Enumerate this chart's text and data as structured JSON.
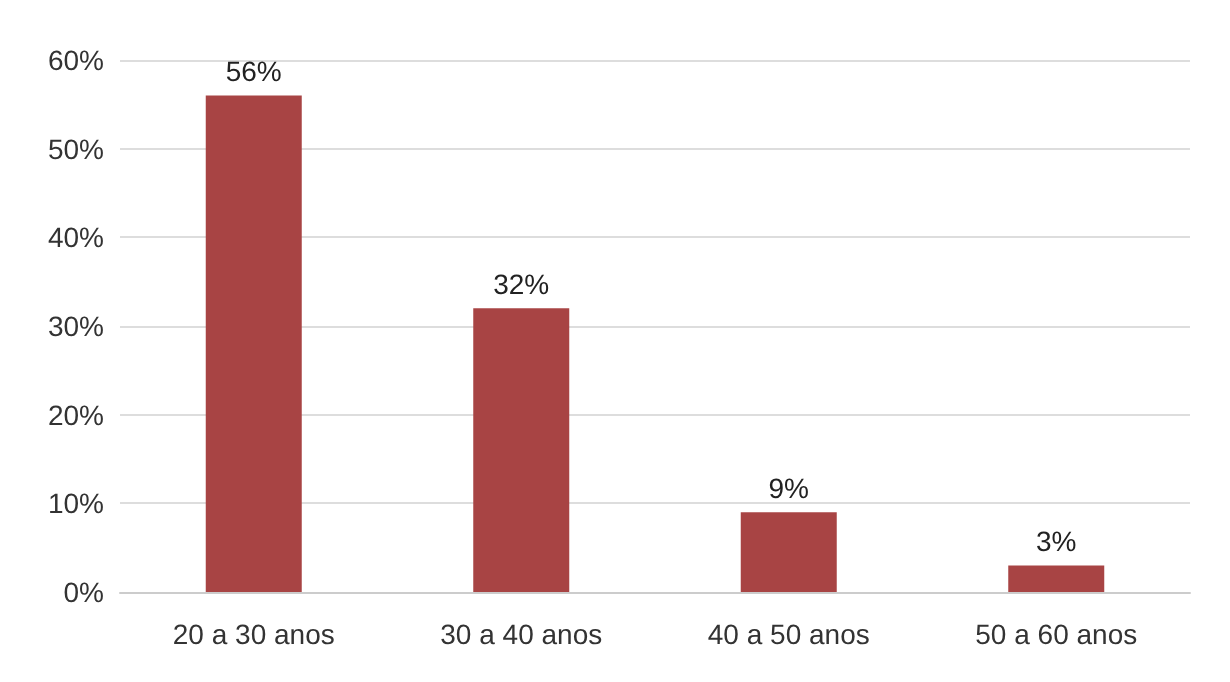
{
  "chart_data": {
    "type": "bar",
    "categories": [
      "20 a 30 anos",
      "30 a 40 anos",
      "40 a 50 anos",
      "50 a 60 anos"
    ],
    "values": [
      56,
      32,
      9,
      3
    ],
    "value_labels": [
      "56%",
      "32%",
      "9%",
      "3%"
    ],
    "color": "#a84444",
    "ylim": [
      0,
      60
    ],
    "yticks": [
      {
        "value": 0,
        "label": "0%"
      },
      {
        "value": 10,
        "label": "10%"
      },
      {
        "value": 20,
        "label": "20%"
      },
      {
        "value": 30,
        "label": "30%"
      },
      {
        "value": 40,
        "label": "40%"
      },
      {
        "value": 50,
        "label": "50%"
      },
      {
        "value": 60,
        "label": "60%"
      }
    ],
    "grid": true
  }
}
